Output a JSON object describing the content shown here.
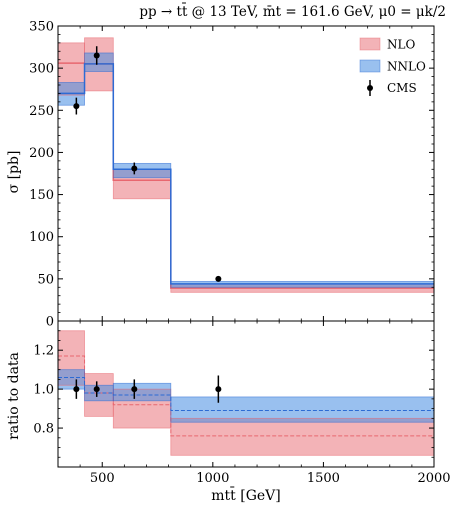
{
  "chart_data": {
    "type": "histogram",
    "title": "pp → tt̄ @ 13 TeV, m̄t = 161.6 GeV, μ0 = μk/2",
    "xlabel": "mtt̄ [GeV]",
    "top_panel": {
      "ylabel": "σ [pb]",
      "ylim": [
        0,
        350
      ],
      "yticks": [
        0,
        50,
        100,
        150,
        200,
        250,
        300,
        350
      ]
    },
    "bottom_panel": {
      "ylabel": "ratio to data",
      "ylim": [
        0.6,
        1.35
      ],
      "yticks": [
        0.8,
        1.0,
        1.2
      ]
    },
    "xlim": [
      300,
      2000
    ],
    "xticks": [
      500,
      1000,
      1500,
      2000
    ],
    "bin_edges": [
      300,
      420,
      550,
      810,
      2000
    ],
    "legend": {
      "placement": "top-right",
      "entries": [
        "NLO",
        "NNLO",
        "CMS"
      ]
    },
    "series": [
      {
        "name": "NLO",
        "color": "#e8676f",
        "fill": "rgba(232,103,111,0.5)",
        "central": [
          306,
          305,
          167,
          39
        ],
        "low": [
          268,
          273,
          145,
          34
        ],
        "high": [
          330,
          336,
          180,
          44
        ],
        "ratio_central": [
          1.17,
          0.98,
          0.92,
          0.76
        ],
        "ratio_low": [
          1.02,
          0.86,
          0.8,
          0.66
        ],
        "ratio_high": [
          1.3,
          1.08,
          1.0,
          0.85
        ]
      },
      {
        "name": "NNLO",
        "color": "#2d6bd4",
        "fill": "rgba(70,140,225,0.55)",
        "central": [
          270,
          305,
          180,
          44
        ],
        "low": [
          256,
          296,
          170,
          40
        ],
        "high": [
          283,
          318,
          187,
          47
        ],
        "ratio_central": [
          1.06,
          0.98,
          0.97,
          0.89
        ],
        "ratio_low": [
          1.0,
          0.94,
          0.94,
          0.83
        ],
        "ratio_high": [
          1.1,
          1.02,
          1.03,
          0.96
        ]
      }
    ],
    "data_points": {
      "name": "CMS",
      "x": [
        383,
        475,
        645,
        1025
      ],
      "y": [
        255,
        315,
        181,
        50
      ],
      "err": [
        10,
        11,
        7,
        2
      ],
      "ratio_err": [
        0.05,
        0.04,
        0.05,
        0.07
      ]
    }
  }
}
